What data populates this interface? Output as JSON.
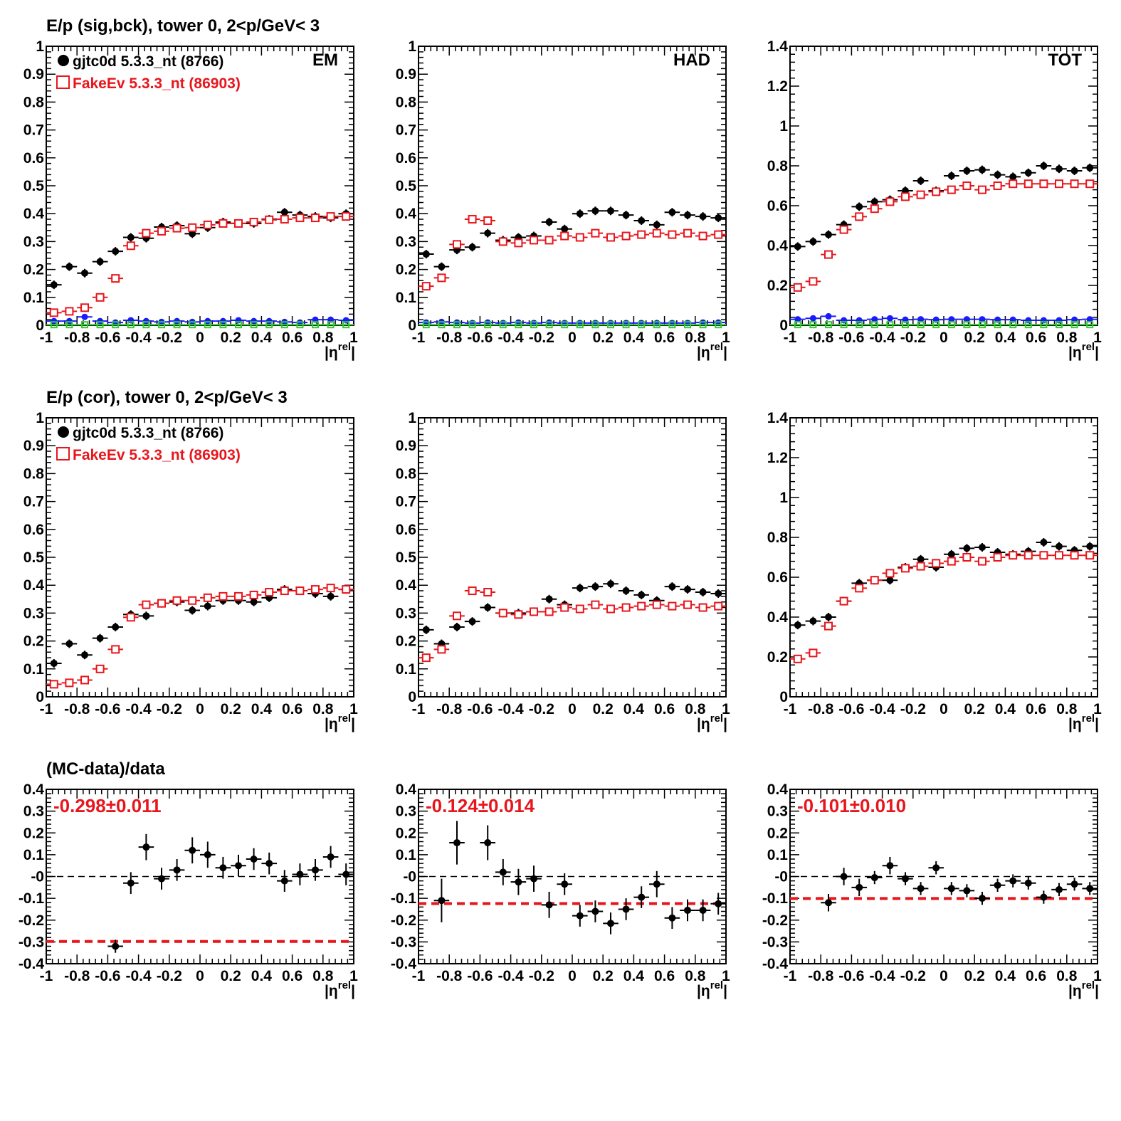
{
  "colors": {
    "data": "#000000",
    "mc": "#e8161c",
    "bck_data": "#1a1aff",
    "bck_mc": "#33cc33",
    "ratio_line": "#e8161c"
  },
  "rows": [
    {
      "title": "E/p (sig,bck), tower 0,  2<p/GeV< 3"
    },
    {
      "title": "E/p (cor), tower 0,  2<p/GeV< 3"
    },
    {
      "title": "(MC-data)/data"
    }
  ],
  "legend": {
    "data_label": "gjtc0d 5.3.3_nt (8766)",
    "mc_label": "FakeEv 5.3.3_nt (86903)"
  },
  "chart_data": [
    {
      "id": "sig-em",
      "type": "scatter",
      "tag": "EM",
      "xlabel": "|η^rel|",
      "ylim": [
        0,
        1
      ],
      "xticks": [
        "-1",
        "-0.8",
        "-0.6",
        "-0.4",
        "-0.2",
        "0",
        "0.2",
        "0.4",
        "0.6",
        "0.8",
        "1"
      ],
      "yticks": [
        "0",
        "0.1",
        "0.2",
        "0.3",
        "0.4",
        "0.5",
        "0.6",
        "0.7",
        "0.8",
        "0.9",
        "1"
      ],
      "x": [
        -0.95,
        -0.85,
        -0.75,
        -0.65,
        -0.55,
        -0.45,
        -0.35,
        -0.25,
        -0.15,
        -0.05,
        0.05,
        0.15,
        0.25,
        0.35,
        0.45,
        0.55,
        0.65,
        0.75,
        0.85,
        0.95
      ],
      "series": [
        {
          "name": "gjtc0d 5.3.3_nt (8766)",
          "style": "data",
          "values": [
            0.145,
            0.21,
            0.187,
            0.228,
            0.265,
            0.315,
            0.312,
            0.352,
            0.357,
            0.328,
            0.35,
            0.37,
            0.365,
            0.365,
            0.38,
            0.405,
            0.395,
            0.39,
            0.385,
            0.4
          ]
        },
        {
          "name": "FakeEv 5.3.3_nt (86903)",
          "style": "mc",
          "values": [
            0.045,
            0.05,
            0.063,
            0.1,
            0.168,
            0.285,
            0.33,
            0.337,
            0.348,
            0.35,
            0.36,
            0.365,
            0.365,
            0.37,
            0.378,
            0.38,
            0.385,
            0.385,
            0.39,
            0.39
          ]
        },
        {
          "style": "bck_data",
          "values": [
            0.015,
            0.015,
            0.03,
            0.015,
            0.01,
            0.018,
            0.015,
            0.012,
            0.015,
            0.012,
            0.015,
            0.015,
            0.018,
            0.015,
            0.015,
            0.012,
            0.01,
            0.02,
            0.02,
            0.018
          ]
        },
        {
          "style": "bck_mc",
          "values": [
            0.002,
            0.002,
            0.002,
            0.002,
            0.002,
            0.002,
            0.002,
            0.002,
            0.002,
            0.002,
            0.002,
            0.002,
            0.002,
            0.002,
            0.002,
            0.002,
            0.002,
            0.002,
            0.002,
            0.002
          ]
        }
      ]
    },
    {
      "id": "sig-had",
      "type": "scatter",
      "tag": "HAD",
      "xlabel": "|η^rel|",
      "ylim": [
        0,
        1
      ],
      "xticks": [
        "-1",
        "-0.8",
        "-0.6",
        "-0.4",
        "-0.2",
        "0",
        "0.2",
        "0.4",
        "0.6",
        "0.8",
        "1"
      ],
      "yticks": [
        "0",
        "0.1",
        "0.2",
        "0.3",
        "0.4",
        "0.5",
        "0.6",
        "0.7",
        "0.8",
        "0.9",
        "1"
      ],
      "x": [
        -0.95,
        -0.85,
        -0.75,
        -0.65,
        -0.55,
        -0.45,
        -0.35,
        -0.25,
        -0.15,
        -0.05,
        0.05,
        0.15,
        0.25,
        0.35,
        0.45,
        0.55,
        0.65,
        0.75,
        0.85,
        0.95
      ],
      "series": [
        {
          "name": "gjtc0d 5.3.3_nt (8766)",
          "style": "data",
          "values": [
            0.255,
            0.21,
            0.27,
            0.28,
            0.33,
            0.305,
            0.315,
            0.32,
            0.37,
            0.345,
            0.4,
            0.41,
            0.41,
            0.395,
            0.375,
            0.36,
            0.405,
            0.395,
            0.39,
            0.385
          ]
        },
        {
          "name": "FakeEv 5.3.3_nt (86903)",
          "style": "mc",
          "values": [
            0.14,
            0.17,
            0.29,
            0.38,
            0.375,
            0.3,
            0.295,
            0.305,
            0.305,
            0.32,
            0.315,
            0.33,
            0.315,
            0.32,
            0.325,
            0.33,
            0.325,
            0.33,
            0.32,
            0.325
          ]
        },
        {
          "style": "bck_data",
          "values": [
            0.01,
            0.012,
            0.01,
            0.008,
            0.01,
            0.008,
            0.01,
            0.008,
            0.01,
            0.008,
            0.008,
            0.008,
            0.008,
            0.008,
            0.008,
            0.008,
            0.008,
            0.008,
            0.01,
            0.01
          ]
        },
        {
          "style": "bck_mc",
          "values": [
            0.002,
            0.002,
            0.002,
            0.002,
            0.002,
            0.002,
            0.002,
            0.002,
            0.002,
            0.002,
            0.002,
            0.002,
            0.002,
            0.002,
            0.002,
            0.002,
            0.002,
            0.002,
            0.002,
            0.002
          ]
        }
      ]
    },
    {
      "id": "sig-tot",
      "type": "scatter",
      "tag": "TOT",
      "xlabel": "|η^rel|",
      "ylim": [
        0,
        1.4
      ],
      "xticks": [
        "-1",
        "-0.8",
        "-0.6",
        "-0.4",
        "-0.2",
        "0",
        "0.2",
        "0.4",
        "0.6",
        "0.8",
        "1"
      ],
      "yticks": [
        "0",
        "0.2",
        "0.4",
        "0.6",
        "0.8",
        "1",
        "1.2",
        "1.4"
      ],
      "x": [
        -0.95,
        -0.85,
        -0.75,
        -0.65,
        -0.55,
        -0.45,
        -0.35,
        -0.25,
        -0.15,
        -0.05,
        0.05,
        0.15,
        0.25,
        0.35,
        0.45,
        0.55,
        0.65,
        0.75,
        0.85,
        0.95
      ],
      "series": [
        {
          "name": "gjtc0d 5.3.3_nt (8766)",
          "style": "data",
          "values": [
            0.395,
            0.42,
            0.455,
            0.505,
            0.595,
            0.62,
            0.63,
            0.675,
            0.725,
            0.675,
            0.75,
            0.775,
            0.78,
            0.755,
            0.745,
            0.765,
            0.8,
            0.785,
            0.775,
            0.79
          ]
        },
        {
          "name": "FakeEv 5.3.3_nt (86903)",
          "style": "mc",
          "values": [
            0.19,
            0.22,
            0.355,
            0.48,
            0.545,
            0.585,
            0.62,
            0.645,
            0.655,
            0.67,
            0.68,
            0.7,
            0.68,
            0.7,
            0.71,
            0.71,
            0.71,
            0.71,
            0.71,
            0.71
          ]
        },
        {
          "style": "bck_data",
          "values": [
            0.03,
            0.035,
            0.045,
            0.025,
            0.025,
            0.03,
            0.035,
            0.028,
            0.03,
            0.028,
            0.03,
            0.03,
            0.03,
            0.028,
            0.028,
            0.025,
            0.025,
            0.025,
            0.028,
            0.03
          ]
        },
        {
          "style": "bck_mc",
          "values": [
            0.003,
            0.003,
            0.003,
            0.003,
            0.003,
            0.003,
            0.003,
            0.003,
            0.003,
            0.003,
            0.003,
            0.003,
            0.003,
            0.003,
            0.003,
            0.003,
            0.003,
            0.003,
            0.003,
            0.003
          ]
        }
      ]
    },
    {
      "id": "cor-em",
      "type": "scatter",
      "tag": "",
      "xlabel": "|η^rel|",
      "ylim": [
        0,
        1
      ],
      "xticks": [
        "-1",
        "-0.8",
        "-0.6",
        "-0.4",
        "-0.2",
        "0",
        "0.2",
        "0.4",
        "0.6",
        "0.8",
        "1"
      ],
      "yticks": [
        "0",
        "0.1",
        "0.2",
        "0.3",
        "0.4",
        "0.5",
        "0.6",
        "0.7",
        "0.8",
        "0.9",
        "1"
      ],
      "x": [
        -0.95,
        -0.85,
        -0.75,
        -0.65,
        -0.55,
        -0.45,
        -0.35,
        -0.25,
        -0.15,
        -0.05,
        0.05,
        0.15,
        0.25,
        0.35,
        0.45,
        0.55,
        0.65,
        0.75,
        0.85,
        0.95
      ],
      "series": [
        {
          "name": "gjtc0d 5.3.3_nt (8766)",
          "style": "data",
          "values": [
            0.12,
            0.19,
            0.15,
            0.21,
            0.25,
            0.295,
            0.29,
            0.335,
            0.34,
            0.31,
            0.325,
            0.345,
            0.345,
            0.34,
            0.355,
            0.385,
            0.38,
            0.37,
            0.36,
            0.385
          ]
        },
        {
          "name": "FakeEv 5.3.3_nt (86903)",
          "style": "mc",
          "values": [
            0.045,
            0.05,
            0.06,
            0.1,
            0.17,
            0.285,
            0.33,
            0.335,
            0.345,
            0.345,
            0.355,
            0.36,
            0.36,
            0.365,
            0.375,
            0.38,
            0.38,
            0.385,
            0.39,
            0.385
          ]
        }
      ]
    },
    {
      "id": "cor-had",
      "type": "scatter",
      "tag": "",
      "xlabel": "|η^rel|",
      "ylim": [
        0,
        1
      ],
      "xticks": [
        "-1",
        "-0.8",
        "-0.6",
        "-0.4",
        "-0.2",
        "0",
        "0.2",
        "0.4",
        "0.6",
        "0.8",
        "1"
      ],
      "yticks": [
        "0",
        "0.1",
        "0.2",
        "0.3",
        "0.4",
        "0.5",
        "0.6",
        "0.7",
        "0.8",
        "0.9",
        "1"
      ],
      "x": [
        -0.95,
        -0.85,
        -0.75,
        -0.65,
        -0.55,
        -0.45,
        -0.35,
        -0.25,
        -0.15,
        -0.05,
        0.05,
        0.15,
        0.25,
        0.35,
        0.45,
        0.55,
        0.65,
        0.75,
        0.85,
        0.95
      ],
      "series": [
        {
          "name": "gjtc0d 5.3.3_nt (8766)",
          "style": "data",
          "values": [
            0.24,
            0.19,
            0.25,
            0.27,
            0.32,
            0.3,
            0.3,
            0.305,
            0.35,
            0.33,
            0.39,
            0.395,
            0.405,
            0.38,
            0.365,
            0.345,
            0.395,
            0.385,
            0.375,
            0.37
          ]
        },
        {
          "name": "FakeEv 5.3.3_nt (86903)",
          "style": "mc",
          "values": [
            0.14,
            0.17,
            0.29,
            0.38,
            0.375,
            0.3,
            0.295,
            0.305,
            0.305,
            0.32,
            0.315,
            0.33,
            0.315,
            0.32,
            0.325,
            0.33,
            0.325,
            0.33,
            0.32,
            0.325
          ]
        }
      ]
    },
    {
      "id": "cor-tot",
      "type": "scatter",
      "tag": "",
      "xlabel": "|η^rel|",
      "ylim": [
        0,
        1.4
      ],
      "xticks": [
        "-1",
        "-0.8",
        "-0.6",
        "-0.4",
        "-0.2",
        "0",
        "0.2",
        "0.4",
        "0.6",
        "0.8",
        "1"
      ],
      "yticks": [
        "0",
        "0.2",
        "0.4",
        "0.6",
        "0.8",
        "1",
        "1.2",
        "1.4"
      ],
      "x": [
        -0.95,
        -0.85,
        -0.75,
        -0.65,
        -0.55,
        -0.45,
        -0.35,
        -0.25,
        -0.15,
        -0.05,
        0.05,
        0.15,
        0.25,
        0.35,
        0.45,
        0.55,
        0.65,
        0.75,
        0.85,
        0.95
      ],
      "series": [
        {
          "name": "gjtc0d 5.3.3_nt (8766)",
          "style": "data",
          "values": [
            0.36,
            0.38,
            0.4,
            0.48,
            0.57,
            0.585,
            0.585,
            0.65,
            0.69,
            0.65,
            0.715,
            0.745,
            0.75,
            0.725,
            0.715,
            0.73,
            0.775,
            0.755,
            0.735,
            0.755
          ]
        },
        {
          "name": "FakeEv 5.3.3_nt (86903)",
          "style": "mc",
          "values": [
            0.19,
            0.22,
            0.355,
            0.48,
            0.545,
            0.585,
            0.62,
            0.645,
            0.655,
            0.67,
            0.68,
            0.7,
            0.68,
            0.7,
            0.71,
            0.71,
            0.71,
            0.71,
            0.71,
            0.71
          ]
        }
      ]
    },
    {
      "id": "ratio-em",
      "type": "scatter",
      "tag": "",
      "xlabel": "|η^rel|",
      "ylim": [
        -0.4,
        0.4
      ],
      "fit_label": "-0.298±0.011",
      "fit_value": -0.298,
      "xticks": [
        "-1",
        "-0.8",
        "-0.6",
        "-0.4",
        "-0.2",
        "0",
        "0.2",
        "0.4",
        "0.6",
        "0.8",
        "1"
      ],
      "yticks": [
        "-0.4",
        "-0.3",
        "-0.2",
        "-0.1",
        "-0",
        "0.1",
        "0.2",
        "0.3",
        "0.4"
      ],
      "x": [
        -0.55,
        -0.45,
        -0.35,
        -0.25,
        -0.15,
        -0.05,
        0.05,
        0.15,
        0.25,
        0.35,
        0.45,
        0.55,
        0.65,
        0.75,
        0.85,
        0.95
      ],
      "series": [
        {
          "style": "ratio",
          "values": [
            -0.32,
            -0.03,
            0.135,
            -0.01,
            0.03,
            0.12,
            0.1,
            0.04,
            0.05,
            0.08,
            0.06,
            -0.02,
            0.01,
            0.03,
            0.09,
            0.01
          ],
          "errors": [
            0.03,
            0.05,
            0.06,
            0.05,
            0.05,
            0.06,
            0.06,
            0.05,
            0.05,
            0.05,
            0.05,
            0.05,
            0.05,
            0.05,
            0.05,
            0.05
          ]
        }
      ]
    },
    {
      "id": "ratio-had",
      "type": "scatter",
      "tag": "",
      "xlabel": "|η^rel|",
      "ylim": [
        -0.4,
        0.4
      ],
      "fit_label": "-0.124±0.014",
      "fit_value": -0.124,
      "xticks": [
        "-1",
        "-0.8",
        "-0.6",
        "-0.4",
        "-0.2",
        "0",
        "0.2",
        "0.4",
        "0.6",
        "0.8",
        "1"
      ],
      "yticks": [
        "-0.4",
        "-0.3",
        "-0.2",
        "-0.1",
        "-0",
        "0.1",
        "0.2",
        "0.3",
        "0.4"
      ],
      "x": [
        -0.85,
        -0.75,
        -0.55,
        -0.45,
        -0.35,
        -0.25,
        -0.15,
        -0.05,
        0.05,
        0.15,
        0.25,
        0.35,
        0.45,
        0.55,
        0.65,
        0.75,
        0.85,
        0.95
      ],
      "series": [
        {
          "style": "ratio",
          "values": [
            -0.11,
            0.155,
            0.155,
            0.02,
            -0.025,
            -0.01,
            -0.13,
            -0.035,
            -0.18,
            -0.16,
            -0.215,
            -0.15,
            -0.095,
            -0.035,
            -0.19,
            -0.155,
            -0.155,
            -0.125
          ],
          "errors": [
            0.1,
            0.1,
            0.08,
            0.06,
            0.06,
            0.06,
            0.06,
            0.05,
            0.05,
            0.05,
            0.05,
            0.05,
            0.05,
            0.06,
            0.05,
            0.05,
            0.05,
            0.05
          ]
        }
      ]
    },
    {
      "id": "ratio-tot",
      "type": "scatter",
      "tag": "",
      "xlabel": "|η^rel|",
      "ylim": [
        -0.4,
        0.4
      ],
      "fit_label": "-0.101±0.010",
      "fit_value": -0.101,
      "xticks": [
        "-1",
        "-0.8",
        "-0.6",
        "-0.4",
        "-0.2",
        "0",
        "0.2",
        "0.4",
        "0.6",
        "0.8",
        "1"
      ],
      "yticks": [
        "-0.4",
        "-0.3",
        "-0.2",
        "-0.1",
        "-0",
        "0.1",
        "0.2",
        "0.3",
        "0.4"
      ],
      "x": [
        -0.75,
        -0.65,
        -0.55,
        -0.45,
        -0.35,
        -0.25,
        -0.15,
        -0.05,
        0.05,
        0.15,
        0.25,
        0.35,
        0.45,
        0.55,
        0.65,
        0.75,
        0.85,
        0.95
      ],
      "series": [
        {
          "style": "ratio",
          "values": [
            -0.12,
            0.0,
            -0.05,
            -0.005,
            0.05,
            -0.01,
            -0.055,
            0.04,
            -0.055,
            -0.065,
            -0.1,
            -0.04,
            -0.02,
            -0.03,
            -0.095,
            -0.06,
            -0.035,
            -0.055
          ],
          "errors": [
            0.04,
            0.04,
            0.04,
            0.03,
            0.04,
            0.03,
            0.03,
            0.03,
            0.03,
            0.03,
            0.03,
            0.03,
            0.03,
            0.03,
            0.03,
            0.03,
            0.03,
            0.03
          ]
        }
      ]
    }
  ]
}
